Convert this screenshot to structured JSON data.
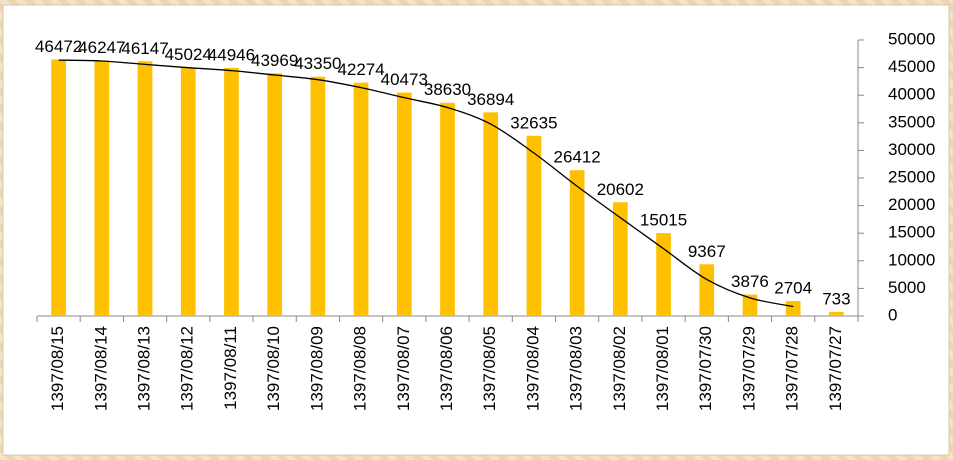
{
  "chart_data": {
    "type": "bar",
    "categories": [
      "1397/08/15",
      "1397/08/14",
      "1397/08/13",
      "1397/08/12",
      "1397/08/11",
      "1397/08/10",
      "1397/08/09",
      "1397/08/08",
      "1397/08/07",
      "1397/08/06",
      "1397/08/05",
      "1397/08/04",
      "1397/08/03",
      "1397/08/02",
      "1397/08/01",
      "1397/07/30",
      "1397/07/29",
      "1397/07/28",
      "1397/07/27"
    ],
    "values": [
      46472,
      46247,
      46147,
      45024,
      44946,
      43969,
      43350,
      42274,
      40473,
      38630,
      36894,
      32635,
      26412,
      20602,
      15015,
      9367,
      3876,
      2704,
      733
    ],
    "color": "#ffc000",
    "ylim": [
      0,
      50000
    ],
    "yticks": [
      0,
      5000,
      10000,
      15000,
      20000,
      25000,
      30000,
      35000,
      40000,
      45000,
      50000
    ],
    "y_axis_side": "right",
    "trendline": {
      "type": "moving_average",
      "period": 2,
      "color": "#000000"
    },
    "grid": false
  }
}
